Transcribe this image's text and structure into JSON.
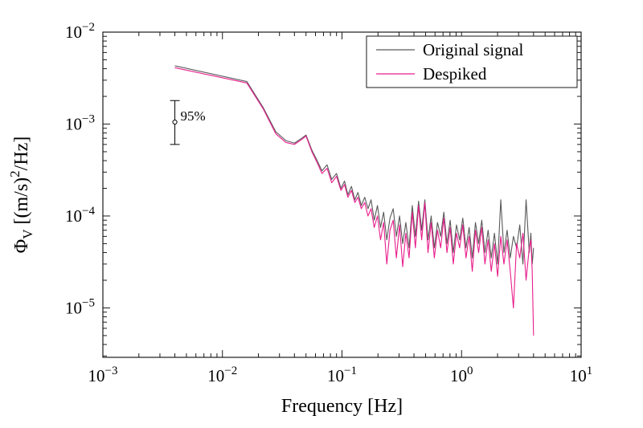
{
  "figure": {
    "background": "#ffffff",
    "axis_color": "#1a1a1a",
    "colors": {
      "original": "#5a5a5a",
      "despiked": "#e81e8c"
    }
  },
  "chart_data": {
    "type": "line",
    "title": "",
    "xlabel": "Frequency [Hz]",
    "ylabel": "Phi_V [(m/s)^2/Hz]",
    "ylabel_parts": {
      "symbol": "Φ",
      "sub": "V",
      "mid": " [(m/s)",
      "sup": "2",
      "end": "/Hz]"
    },
    "x_scale": "log",
    "y_scale": "log",
    "xlim": [
      0.001,
      10
    ],
    "ylim": [
      2.9e-06,
      0.01
    ],
    "grid": false,
    "x_ticks": [
      {
        "value": 0.001,
        "base": "10",
        "exp": "−3"
      },
      {
        "value": 0.01,
        "base": "10",
        "exp": "−2"
      },
      {
        "value": 0.1,
        "base": "10",
        "exp": "−1"
      },
      {
        "value": 1,
        "base": "10",
        "exp": "0"
      },
      {
        "value": 10,
        "base": "10",
        "exp": "1"
      }
    ],
    "y_ticks": [
      {
        "value": 0.01,
        "base": "10",
        "exp": "−2"
      },
      {
        "value": 0.001,
        "base": "10",
        "exp": "−3"
      },
      {
        "value": 0.0001,
        "base": "10",
        "exp": "−4"
      },
      {
        "value": 1e-05,
        "base": "10",
        "exp": "−5"
      }
    ],
    "legend": {
      "position": "northeast",
      "entries": [
        "Original signal",
        "Despiked"
      ]
    },
    "errorbar": {
      "x": 0.004,
      "y": 0.00105,
      "y_low": 0.0006,
      "y_high": 0.0018,
      "label": "95%"
    },
    "x": [
      0.004,
      0.016,
      0.022,
      0.028,
      0.034,
      0.04,
      0.046,
      0.05,
      0.056,
      0.062,
      0.068,
      0.075,
      0.082,
      0.09,
      0.098,
      0.105,
      0.112,
      0.12,
      0.128,
      0.136,
      0.145,
      0.155,
      0.165,
      0.175,
      0.186,
      0.198,
      0.21,
      0.223,
      0.237,
      0.252,
      0.268,
      0.285,
      0.303,
      0.322,
      0.342,
      0.364,
      0.387,
      0.411,
      0.437,
      0.464,
      0.493,
      0.524,
      0.557,
      0.592,
      0.629,
      0.669,
      0.711,
      0.755,
      0.803,
      0.853,
      0.907,
      0.964,
      1.024,
      1.089,
      1.157,
      1.23,
      1.307,
      1.389,
      1.476,
      1.569,
      1.668,
      1.773,
      1.884,
      2.003,
      2.128,
      2.262,
      2.404,
      2.555,
      2.716,
      2.886,
      3.068,
      3.261,
      3.466,
      3.684,
      3.8,
      3.9,
      4.0
    ],
    "series": [
      {
        "name": "Original signal",
        "color": "#5a5a5a",
        "values": [
          0.0043,
          0.0029,
          0.0015,
          0.00082,
          0.00066,
          0.00062,
          0.0007,
          0.00076,
          0.00052,
          0.0004,
          0.00031,
          0.00036,
          0.00025,
          0.00029,
          0.0002,
          0.00024,
          0.00017,
          0.00021,
          0.00015,
          0.00018,
          0.00013,
          0.00016,
          0.00012,
          0.00015,
          9e-05,
          0.00013,
          7.5e-05,
          0.00011,
          5.5e-05,
          9.5e-05,
          0.00012,
          6e-05,
          0.0001,
          5e-05,
          8.5e-05,
          4.5e-05,
          0.00013,
          6e-05,
          0.000145,
          7e-05,
          0.00015,
          5.5e-05,
          0.0001,
          4.5e-05,
          8.5e-05,
          6e-05,
          0.00011,
          5e-05,
          9e-05,
          4e-05,
          8e-05,
          5.5e-05,
          9.5e-05,
          4.5e-05,
          7.5e-05,
          3.5e-05,
          8.5e-05,
          5e-05,
          9e-05,
          4e-05,
          7e-05,
          3.5e-05,
          6.5e-05,
          3e-05,
          0.00015,
          4e-05,
          7e-05,
          3.5e-05,
          6e-05,
          4.5e-05,
          8e-05,
          3e-05,
          0.00015,
          4e-05,
          6.5e-05,
          3e-05,
          4.5e-05
        ]
      },
      {
        "name": "Despiked",
        "color": "#e81e8c",
        "values": [
          0.0041,
          0.0028,
          0.00145,
          0.00078,
          0.00063,
          0.0006,
          0.00068,
          0.00074,
          0.0005,
          0.00038,
          0.00029,
          0.00033,
          0.00023,
          0.00027,
          0.00019,
          0.00022,
          0.00016,
          0.00019,
          0.00014,
          0.00016,
          0.00012,
          0.00014,
          0.0001,
          0.00012,
          7.5e-05,
          0.0001,
          5.5e-05,
          8.5e-05,
          3e-05,
          7e-05,
          9e-05,
          3.5e-05,
          8e-05,
          2.8e-05,
          6.5e-05,
          3.5e-05,
          0.00011,
          4.5e-05,
          0.00013,
          5.5e-05,
          0.00014,
          4e-05,
          8.5e-05,
          3.5e-05,
          7e-05,
          4.5e-05,
          9.5e-05,
          4e-05,
          7.5e-05,
          3e-05,
          6.5e-05,
          4.5e-05,
          8e-05,
          3.5e-05,
          6e-05,
          2.5e-05,
          7e-05,
          4e-05,
          7.5e-05,
          3e-05,
          5.5e-05,
          2.5e-05,
          5e-05,
          2.2e-05,
          6e-05,
          3e-05,
          5.5e-05,
          2.5e-05,
          1e-05,
          5e-05,
          3.5e-05,
          6.5e-05,
          2e-05,
          4.5e-05,
          5.5e-05,
          2.5e-05,
          5e-06
        ]
      }
    ]
  }
}
